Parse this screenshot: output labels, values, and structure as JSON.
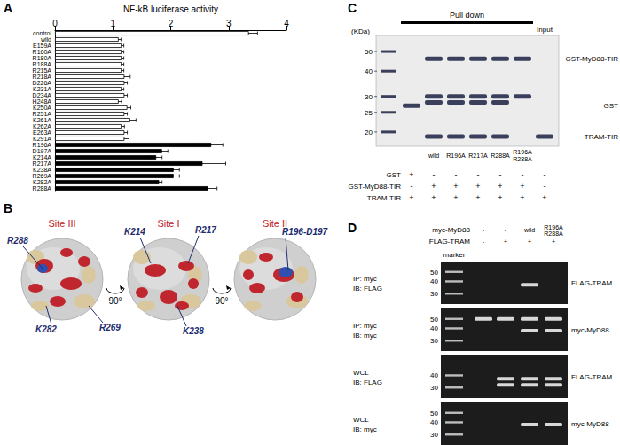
{
  "chart_data": {
    "type": "bar",
    "orientation": "horizontal",
    "title": "NF-kB luciferase activity",
    "categories": [
      "control",
      "wild",
      "E159A",
      "R160A",
      "R180A",
      "R188A",
      "R215A",
      "R218A",
      "D226A",
      "K231A",
      "D234A",
      "H248A",
      "K250A",
      "R251A",
      "K261A",
      "K262A",
      "E263A",
      "K291A",
      "R196A",
      "D197A",
      "K214A",
      "R217A",
      "K238A",
      "R269A",
      "K282A",
      "R288A"
    ],
    "values": [
      3.35,
      1.1,
      1.15,
      1.15,
      1.15,
      1.15,
      1.15,
      1.2,
      1.2,
      1.15,
      1.2,
      1.1,
      1.25,
      1.2,
      1.3,
      1.15,
      1.2,
      1.2,
      2.7,
      1.85,
      1.75,
      2.55,
      2.05,
      2.05,
      1.8,
      2.65
    ],
    "errors": [
      0.15,
      0.04,
      0.04,
      0.04,
      0.04,
      0.04,
      0.04,
      0.1,
      0.05,
      0.04,
      0.05,
      0.05,
      0.06,
      0.05,
      0.1,
      0.05,
      0.05,
      0.08,
      0.2,
      0.1,
      0.1,
      0.4,
      0.1,
      0.1,
      0.05,
      0.15
    ],
    "colors": [
      "#ffffff",
      "#ffffff",
      "#ffffff",
      "#ffffff",
      "#ffffff",
      "#ffffff",
      "#ffffff",
      "#ffffff",
      "#ffffff",
      "#ffffff",
      "#ffffff",
      "#ffffff",
      "#ffffff",
      "#ffffff",
      "#ffffff",
      "#ffffff",
      "#ffffff",
      "#ffffff",
      "#000000",
      "#000000",
      "#000000",
      "#000000",
      "#000000",
      "#000000",
      "#000000",
      "#000000"
    ],
    "xlim": [
      0,
      4
    ],
    "xticks": [
      0,
      1,
      2,
      3,
      4
    ],
    "grid": false
  },
  "panels": {
    "A": {
      "letter": "A"
    },
    "B": {
      "letter": "B",
      "rotation": "90°",
      "sites": [
        {
          "title": "Site III",
          "residues": [
            "R288",
            "K282",
            "R269"
          ]
        },
        {
          "title": "Site I",
          "residues": [
            "K214",
            "R217",
            "K238"
          ]
        },
        {
          "title": "Site II",
          "residues": [
            "R196-D197"
          ]
        }
      ]
    },
    "C": {
      "letter": "C",
      "unit": "(KDa)",
      "header": "Pull down",
      "input": "Input",
      "markers": [
        50,
        40,
        30,
        25,
        20
      ],
      "lane_labels": [
        null,
        "wild",
        "R196A",
        "R217A",
        "R288A",
        [
          "R196A",
          "R288A"
        ],
        null
      ],
      "rows": [
        {
          "name": "GST",
          "marks": [
            "+",
            "-",
            "-",
            "-",
            "-",
            "-",
            "-"
          ]
        },
        {
          "name": "GST-MyD88-TIR",
          "marks": [
            "-",
            "+",
            "+",
            "+",
            "+",
            "+",
            "-"
          ]
        },
        {
          "name": "TRAM-TIR",
          "marks": [
            "+",
            "+",
            "+",
            "+",
            "+",
            "+",
            "+"
          ]
        }
      ],
      "band_labels": [
        {
          "text": "GST-MyD88-TIR",
          "kda": 46
        },
        {
          "text": "GST",
          "kda": 27
        },
        {
          "text": "TRAM-TIR",
          "kda": 19
        }
      ],
      "bands": [
        [
          0,
          27
        ],
        [
          1,
          46
        ],
        [
          2,
          46
        ],
        [
          3,
          46
        ],
        [
          4,
          46
        ],
        [
          5,
          46
        ],
        [
          1,
          30
        ],
        [
          2,
          30
        ],
        [
          3,
          30
        ],
        [
          4,
          30
        ],
        [
          5,
          30
        ],
        [
          1,
          28
        ],
        [
          2,
          28
        ],
        [
          3,
          28
        ],
        [
          4,
          28
        ],
        [
          1,
          19
        ],
        [
          2,
          19
        ],
        [
          3,
          19
        ],
        [
          4,
          19
        ],
        [
          6,
          19
        ]
      ]
    },
    "D": {
      "letter": "D",
      "marker_label": "marker",
      "header": [
        {
          "name": "myc-MyD88",
          "marks": [
            "-",
            "-",
            "wild",
            [
              "R196A",
              "R288A"
            ]
          ]
        },
        {
          "name": "FLAG-TRAM",
          "marks": [
            "-",
            "+",
            "+",
            "+"
          ]
        }
      ],
      "blots": [
        {
          "left": [
            "IP: myc",
            "IB: FLAG"
          ],
          "right": "FLAG-TRAM",
          "markers": [
            50,
            40,
            30
          ],
          "bands": [
            [
              2,
              37
            ]
          ]
        },
        {
          "left": [
            "IP: myc",
            "IB: myc"
          ],
          "right": "myc-MyD88",
          "markers": [
            50,
            40,
            30
          ],
          "bands": [
            [
              0,
              50
            ],
            [
              1,
              50
            ],
            [
              2,
              50
            ],
            [
              3,
              50
            ],
            [
              2,
              38
            ],
            [
              3,
              38
            ]
          ]
        },
        {
          "left": [
            "WCL",
            "IB: FLAG"
          ],
          "right": "FLAG-TRAM",
          "markers": [
            40,
            30
          ],
          "bands": [
            [
              1,
              37
            ],
            [
              2,
              37
            ],
            [
              3,
              37
            ],
            [
              1,
              32
            ],
            [
              2,
              32
            ],
            [
              3,
              32
            ]
          ]
        },
        {
          "left": [
            "WCL",
            "IB: myc"
          ],
          "right": "myc-MyD88",
          "markers": [
            50,
            40,
            30
          ],
          "bands": [
            [
              2,
              38
            ],
            [
              3,
              38
            ]
          ]
        }
      ]
    }
  }
}
